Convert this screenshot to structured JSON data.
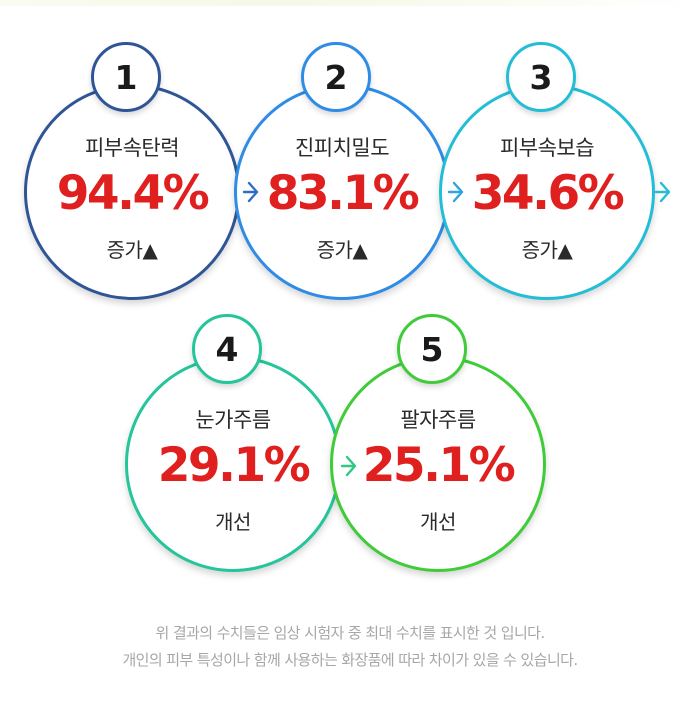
{
  "items": [
    {
      "number": "1",
      "label": "피부속탄력",
      "value": "94.4%",
      "change": "증가▲",
      "color": "#2f5597"
    },
    {
      "number": "2",
      "label": "진피치밀도",
      "value": "83.1%",
      "change": "증가▲",
      "color": "#2e8be6"
    },
    {
      "number": "3",
      "label": "피부속보습",
      "value": "34.6%",
      "change": "증가▲",
      "color": "#23bdd6"
    },
    {
      "number": "4",
      "label": "눈가주름",
      "value": "29.1%",
      "change": "개선",
      "color": "#24c59b"
    },
    {
      "number": "5",
      "label": "팔자주름",
      "value": "25.1%",
      "change": "개선",
      "color": "#3fcc38"
    }
  ],
  "footnote": {
    "line1": "위 결과의 수치들은 임상 시험자 중 최대 수치를 표시한 것 입니다.",
    "line2": "개인의 피부 특성이나 함께 사용하는 화장품에 따라 차이가 있을 수 있습니다."
  }
}
